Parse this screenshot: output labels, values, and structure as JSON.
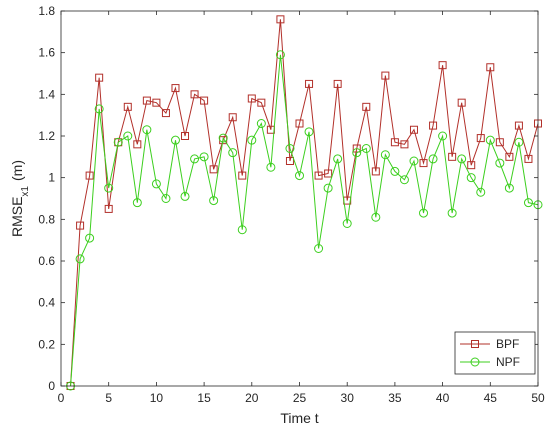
{
  "chart_data": {
    "type": "line",
    "xlabel": "Time t",
    "ylabel_main": "RMSE",
    "ylabel_sub": "x1",
    "ylabel_unit": "(m)",
    "xlim": [
      0,
      50
    ],
    "ylim": [
      0,
      1.8
    ],
    "xticks": [
      0,
      5,
      10,
      15,
      20,
      25,
      30,
      35,
      40,
      45,
      50
    ],
    "yticks": [
      0,
      0.2,
      0.4,
      0.6,
      0.8,
      1,
      1.2,
      1.4,
      1.6,
      1.8
    ],
    "ytick_labels": [
      "0",
      "0.2",
      "0.4",
      "0.6",
      "0.8",
      "1",
      "1.2",
      "1.4",
      "1.6",
      "1.8"
    ],
    "grid": false,
    "legend_position": "bottom-right",
    "x": [
      1,
      2,
      3,
      4,
      5,
      6,
      7,
      8,
      9,
      10,
      11,
      12,
      13,
      14,
      15,
      16,
      17,
      18,
      19,
      20,
      21,
      22,
      23,
      24,
      25,
      26,
      27,
      28,
      29,
      30,
      31,
      32,
      33,
      34,
      35,
      36,
      37,
      38,
      39,
      40,
      41,
      42,
      43,
      44,
      45,
      46,
      47,
      48,
      49,
      50
    ],
    "series": [
      {
        "name": "BPF",
        "color": "#b2302a",
        "marker": "square",
        "values": [
          0,
          0.77,
          1.01,
          1.48,
          0.85,
          1.17,
          1.34,
          1.16,
          1.37,
          1.36,
          1.31,
          1.43,
          1.2,
          1.4,
          1.37,
          1.04,
          1.18,
          1.29,
          1.01,
          1.38,
          1.36,
          1.23,
          1.76,
          1.08,
          1.26,
          1.45,
          1.01,
          1.02,
          1.45,
          0.89,
          1.14,
          1.34,
          1.03,
          1.49,
          1.17,
          1.16,
          1.23,
          1.07,
          1.25,
          1.54,
          1.1,
          1.36,
          1.06,
          1.19,
          1.53,
          1.17,
          1.1,
          1.25,
          1.09,
          1.26
        ]
      },
      {
        "name": "NPF",
        "color": "#3ccf1e",
        "marker": "circle",
        "values": [
          0,
          0.61,
          0.71,
          1.33,
          0.95,
          1.17,
          1.2,
          0.88,
          1.23,
          0.97,
          0.9,
          1.18,
          0.91,
          1.09,
          1.1,
          0.89,
          1.19,
          1.12,
          0.75,
          1.18,
          1.26,
          1.05,
          1.59,
          1.14,
          1.01,
          1.22,
          0.66,
          0.95,
          1.09,
          0.78,
          1.12,
          1.14,
          0.81,
          1.11,
          1.03,
          0.99,
          1.08,
          0.83,
          1.09,
          1.2,
          0.83,
          1.09,
          1.0,
          0.93,
          1.18,
          1.07,
          0.95,
          1.17,
          0.88,
          0.87
        ]
      }
    ]
  }
}
